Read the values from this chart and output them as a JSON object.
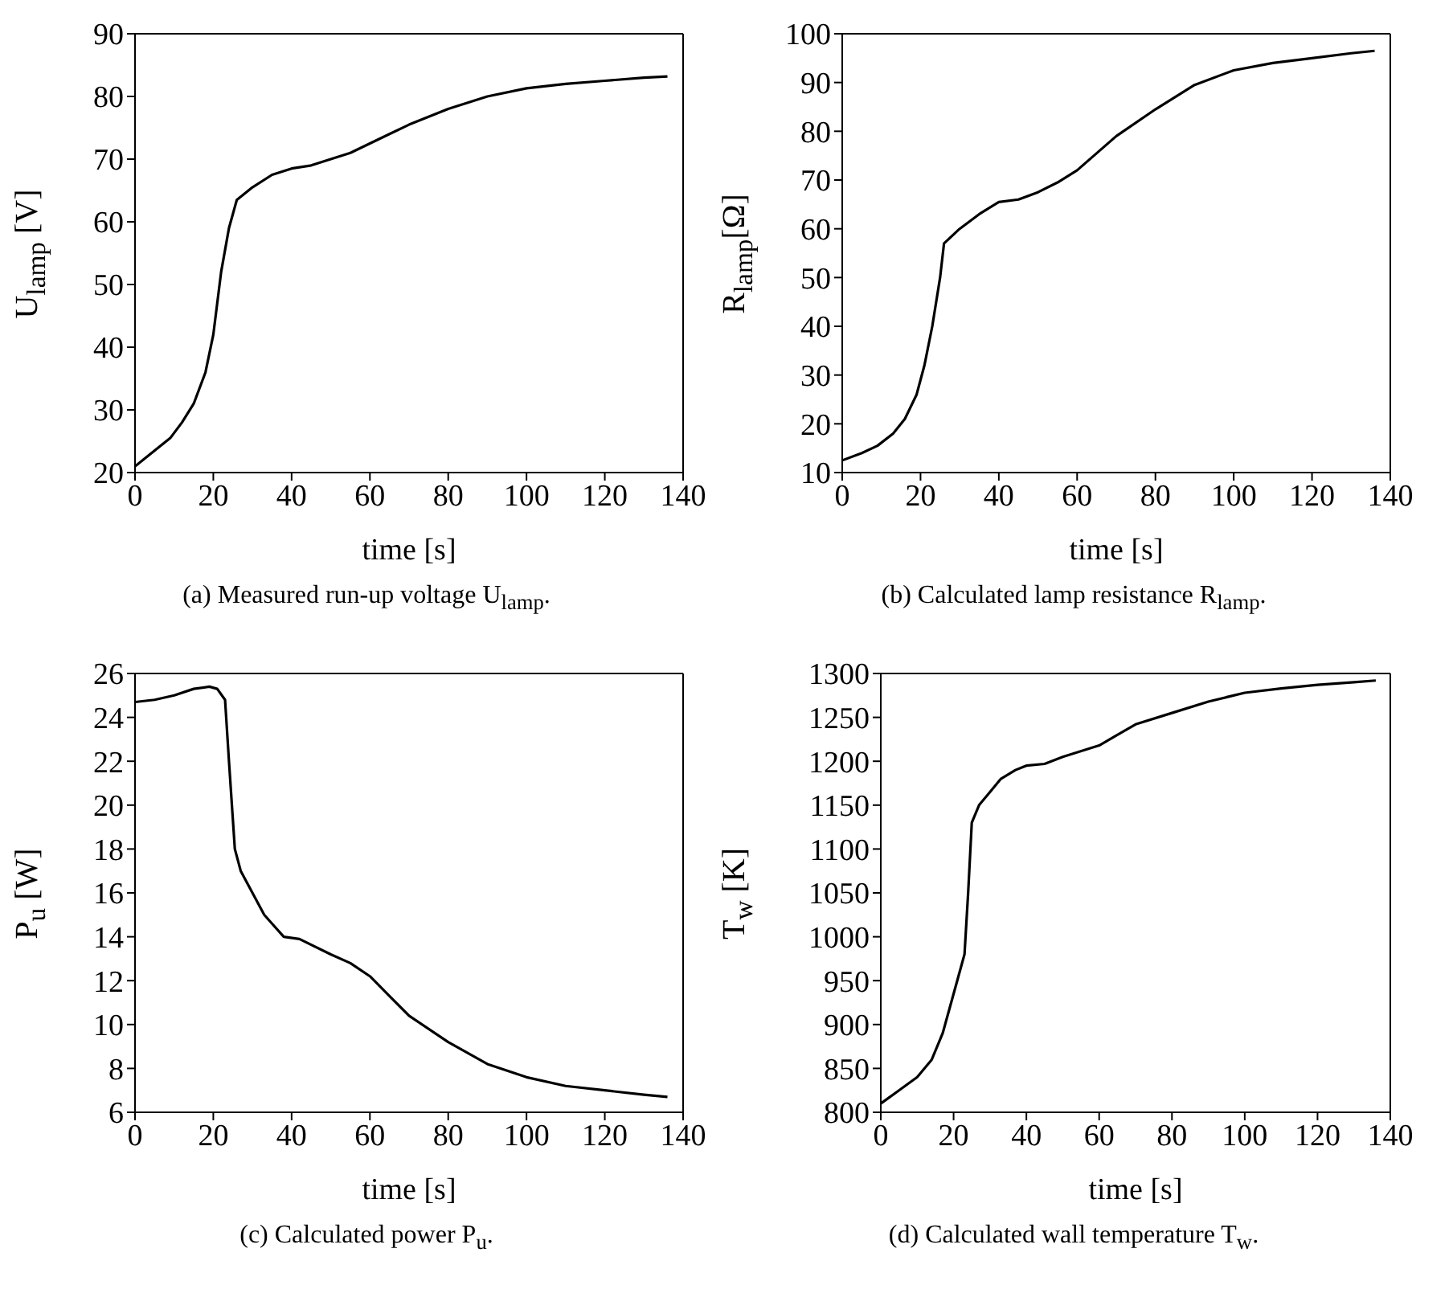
{
  "chart_data": [
    {
      "type": "line",
      "title": "(a) Measured run-up voltage U$_{lamp}$.",
      "xlabel": "time [s]",
      "ylabel": "U$_{lamp}$ [V]",
      "xlim": [
        0,
        140
      ],
      "xticks": [
        0,
        20,
        40,
        60,
        80,
        100,
        120,
        140
      ],
      "ylim": [
        20,
        90
      ],
      "yticks": [
        20,
        30,
        40,
        50,
        60,
        70,
        80,
        90
      ],
      "marker": "none",
      "line_style": "solid",
      "x": [
        0,
        3,
        6,
        9,
        12,
        15,
        18,
        20,
        22,
        24,
        26,
        30,
        35,
        40,
        45,
        50,
        55,
        60,
        65,
        70,
        80,
        90,
        100,
        110,
        120,
        130,
        136
      ],
      "series": [
        {
          "color": "#000000",
          "values": [
            21,
            22.5,
            24,
            25.5,
            28,
            31,
            36,
            42,
            52,
            59,
            63.5,
            65.5,
            67.5,
            68.5,
            69,
            70,
            71,
            72.5,
            74,
            75.5,
            78,
            80,
            81.3,
            82,
            82.5,
            83,
            83.2
          ]
        }
      ]
    },
    {
      "type": "line",
      "title": "(b) Calculated lamp resistance R$_{lamp}$.",
      "xlabel": "time [s]",
      "ylabel": "R$_{lamp}$[Ω]",
      "xlim": [
        0,
        140
      ],
      "xticks": [
        0,
        20,
        40,
        60,
        80,
        100,
        120,
        140
      ],
      "ylim": [
        10,
        100
      ],
      "yticks": [
        10,
        20,
        30,
        40,
        50,
        60,
        70,
        80,
        90,
        100
      ],
      "marker": "none",
      "line_style": "solid",
      "x": [
        0,
        5,
        9,
        13,
        16,
        19,
        21,
        23,
        25,
        26,
        30,
        35,
        40,
        45,
        50,
        55,
        60,
        65,
        70,
        80,
        90,
        100,
        110,
        120,
        130,
        136
      ],
      "series": [
        {
          "color": "#000000",
          "values": [
            12.5,
            14,
            15.5,
            18,
            21,
            26,
            32,
            40,
            50,
            57,
            60,
            63,
            65.5,
            66,
            67.5,
            69.5,
            72,
            75.5,
            79,
            84.5,
            89.5,
            92.5,
            94,
            95,
            96,
            96.5
          ]
        }
      ]
    },
    {
      "type": "line",
      "title": "(c) Calculated power P$_{u}$.",
      "xlabel": "time [s]",
      "ylabel": "P$_{u}$ [W]",
      "xlim": [
        0,
        140
      ],
      "xticks": [
        0,
        20,
        40,
        60,
        80,
        100,
        120,
        140
      ],
      "ylim": [
        6,
        26
      ],
      "yticks": [
        6,
        8,
        10,
        12,
        14,
        16,
        18,
        20,
        22,
        24,
        26
      ],
      "marker": "none",
      "line_style": "solid",
      "x": [
        0,
        5,
        10,
        15,
        19,
        21,
        23,
        24,
        25.5,
        27,
        30,
        33,
        35,
        38,
        42,
        50,
        55,
        60,
        65,
        70,
        80,
        90,
        100,
        110,
        120,
        130,
        136
      ],
      "series": [
        {
          "color": "#000000",
          "values": [
            24.7,
            24.8,
            25,
            25.3,
            25.4,
            25.3,
            24.8,
            22,
            18,
            17,
            16,
            15,
            14.6,
            14,
            13.9,
            13.2,
            12.8,
            12.2,
            11.3,
            10.4,
            9.2,
            8.2,
            7.6,
            7.2,
            7,
            6.8,
            6.7
          ]
        }
      ]
    },
    {
      "type": "line",
      "title": "(d) Calculated wall temperature T$_{w}$.",
      "xlabel": "time [s]",
      "ylabel": "T$_{w}$ [K]",
      "xlim": [
        0,
        140
      ],
      "xticks": [
        0,
        20,
        40,
        60,
        80,
        100,
        120,
        140
      ],
      "ylim": [
        800,
        1300
      ],
      "yticks": [
        800,
        850,
        900,
        950,
        1000,
        1050,
        1100,
        1150,
        1200,
        1250,
        1300
      ],
      "marker": "none",
      "line_style": "solid",
      "x": [
        0,
        5,
        10,
        14,
        17,
        19,
        21,
        23,
        24,
        25,
        27,
        30,
        33,
        37,
        40,
        45,
        50,
        60,
        65,
        70,
        80,
        90,
        100,
        110,
        120,
        130,
        136
      ],
      "series": [
        {
          "color": "#000000",
          "values": [
            810,
            825,
            840,
            860,
            890,
            920,
            950,
            980,
            1050,
            1130,
            1150,
            1165,
            1180,
            1190,
            1195,
            1197,
            1205,
            1218,
            1230,
            1242,
            1255,
            1268,
            1278,
            1283,
            1287,
            1290,
            1292
          ]
        }
      ]
    }
  ]
}
